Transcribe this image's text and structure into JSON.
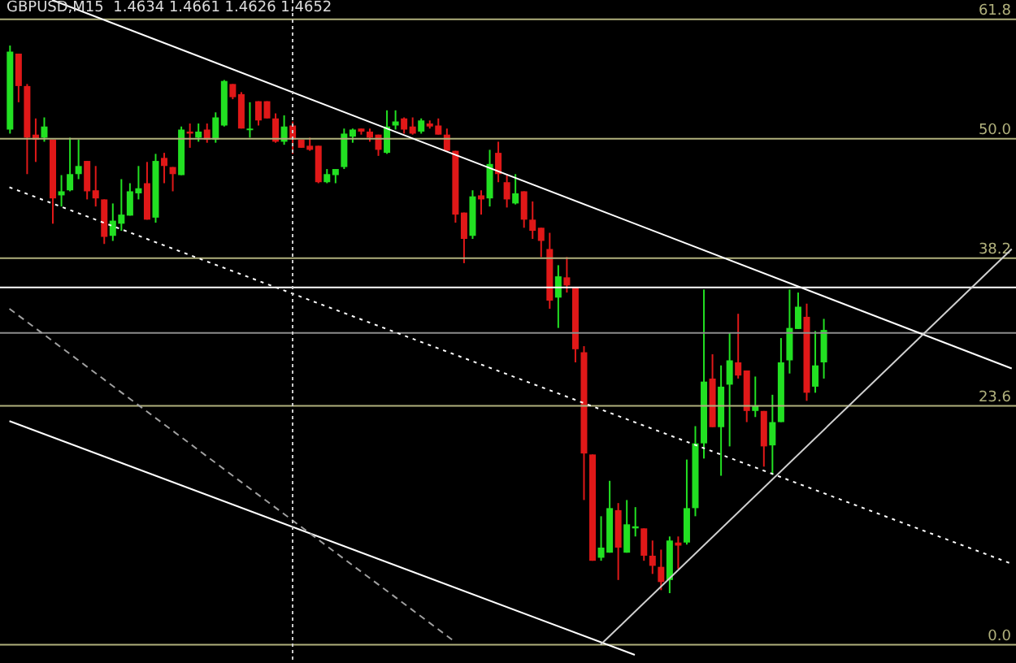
{
  "chart_data": {
    "type": "candlestick",
    "title": "GBPUSD,M15  1.4634 1.4661 1.4626 1.4652",
    "tick_labels": false,
    "grid": false,
    "legend": false,
    "categories": [
      null,
      null,
      null,
      null,
      null,
      null,
      null,
      null,
      null,
      null,
      null,
      null,
      null,
      null,
      null,
      null,
      null,
      null,
      null,
      null,
      null,
      null,
      null,
      null,
      null,
      null,
      null,
      null,
      null,
      null,
      null,
      null,
      null,
      null,
      null,
      null,
      null,
      null,
      null,
      null,
      null,
      null,
      null,
      null,
      null,
      null,
      null,
      null,
      null,
      null,
      null,
      null,
      null,
      null,
      null,
      null,
      null,
      null,
      null,
      null,
      null,
      null,
      null,
      null,
      null,
      null,
      null,
      null,
      null,
      null,
      null,
      null,
      null,
      null,
      null,
      null,
      null,
      null,
      null,
      null,
      null,
      null,
      null,
      null,
      null,
      null,
      null,
      null,
      null,
      null,
      null,
      null,
      null,
      null,
      null,
      null,
      null,
      null,
      null,
      null,
      null,
      null,
      null,
      null,
      null,
      null,
      null,
      null,
      null,
      null,
      null,
      null,
      null,
      null,
      null,
      null,
      null,
      null
    ],
    "colors": [
      "#22e022",
      "#e01818",
      "#e01818",
      "#e01818",
      "#22e022",
      "#e01818",
      "#22e022",
      "#22e022",
      "#22e022",
      "#e01818",
      "#e01818",
      "#e01818",
      "#22e022",
      "#22e022",
      "#22e022",
      "#22e022",
      "#e01818",
      "#22e022",
      "#e01818",
      "#e01818",
      "#22e022",
      "#e01818",
      "#22e022",
      "#e01818",
      "#22e022",
      "#22e022",
      "#e01818",
      "#e01818",
      "#22e022",
      "#e01818",
      "#e01818",
      "#e01818",
      "#22e022",
      "#e01818",
      "#e01818",
      "#e01818",
      "#e01818",
      "#22e022",
      "#22e022",
      "#22e022",
      "#22e022",
      "#e01818",
      "#e01818",
      "#e01818",
      "#22e022",
      "#22e022",
      "#e01818",
      "#e01818",
      "#22e022",
      "#e01818",
      "#e01818",
      "#e01818",
      "#e01818",
      "#e01818",
      "#22e022",
      "#e01818",
      "#22e022",
      "#e01818",
      "#e01818",
      "#22e022",
      "#e01818",
      "#e01818",
      "#e01818",
      "#e01818",
      "#22e022",
      "#e01818",
      "#e01818",
      "#e01818",
      "#e01818",
      "#22e022",
      "#22e022",
      "#e01818",
      "#22e022",
      "#22e022",
      "#e01818",
      "#e01818",
      "#e01818",
      "#22e022",
      "#e01818",
      "#22e022",
      "#22e022",
      "#22e022",
      "#e01818",
      "#22e022",
      "#22e022",
      "#e01818",
      "#e01818",
      "#22e022",
      "#e01818",
      "#22e022",
      "#22e022",
      "#22e022",
      "#22e022",
      "#e01818",
      "#22e022",
      "#22e022",
      null,
      null,
      null,
      null,
      null,
      null,
      null,
      null,
      null,
      null,
      null,
      null,
      null,
      null,
      null,
      null,
      null,
      null,
      null,
      null,
      null,
      null
    ],
    "ylim": [
      -1.8,
      63.7
    ],
    "ohlc": [
      [
        50.9,
        59.2,
        50.5,
        58.6
      ],
      [
        58.4,
        58.4,
        53.6,
        55.2
      ],
      [
        55.2,
        55.4,
        46.5,
        50.1
      ],
      [
        50.4,
        52.0,
        47.7,
        49.9
      ],
      [
        50.1,
        52.1,
        49.7,
        51.2
      ],
      [
        49.9,
        49.9,
        41.6,
        44.1
      ],
      [
        44.4,
        46.4,
        43.3,
        44.8
      ],
      [
        44.9,
        50.1,
        44.8,
        46.5
      ],
      [
        46.5,
        49.9,
        46.0,
        47.3
      ],
      [
        47.8,
        47.8,
        44.0,
        44.8
      ],
      [
        44.9,
        47.3,
        43.3,
        44.1
      ],
      [
        44.0,
        44.0,
        39.6,
        40.3
      ],
      [
        40.4,
        43.6,
        39.9,
        41.9
      ],
      [
        41.6,
        46.0,
        40.9,
        42.5
      ],
      [
        42.4,
        45.6,
        42.4,
        44.8
      ],
      [
        44.6,
        47.3,
        44.0,
        45.1
      ],
      [
        45.6,
        47.7,
        42.0,
        42.0
      ],
      [
        42.2,
        48.5,
        41.7,
        47.8
      ],
      [
        48.1,
        48.6,
        45.6,
        47.3
      ],
      [
        47.2,
        47.2,
        44.8,
        46.5
      ],
      [
        46.4,
        51.2,
        46.4,
        50.9
      ],
      [
        50.7,
        51.5,
        49.1,
        50.5
      ],
      [
        50.1,
        51.5,
        49.7,
        50.7
      ],
      [
        50.9,
        51.5,
        49.6,
        49.9
      ],
      [
        49.9,
        52.6,
        49.6,
        52.1
      ],
      [
        51.3,
        55.8,
        51.2,
        55.7
      ],
      [
        55.4,
        55.4,
        53.9,
        54.1
      ],
      [
        54.4,
        54.6,
        51.0,
        51.0
      ],
      [
        50.9,
        53.6,
        50.1,
        51.0
      ],
      [
        53.7,
        53.7,
        51.3,
        51.8
      ],
      [
        53.7,
        53.7,
        52.0,
        52.0
      ],
      [
        52.0,
        52.5,
        49.6,
        49.7
      ],
      [
        49.7,
        52.3,
        49.4,
        51.2
      ],
      [
        51.3,
        51.7,
        48.5,
        49.9
      ],
      [
        49.9,
        49.9,
        49.1,
        49.1
      ],
      [
        49.3,
        50.1,
        48.8,
        48.9
      ],
      [
        49.3,
        49.3,
        45.6,
        45.7
      ],
      [
        45.7,
        47.0,
        45.6,
        46.5
      ],
      [
        46.4,
        47.0,
        45.6,
        47.0
      ],
      [
        47.2,
        51.0,
        47.0,
        50.5
      ],
      [
        50.2,
        51.0,
        49.6,
        50.9
      ],
      [
        51.0,
        51.0,
        50.4,
        50.7
      ],
      [
        50.7,
        51.0,
        49.7,
        50.1
      ],
      [
        50.4,
        50.4,
        48.3,
        48.9
      ],
      [
        48.6,
        52.8,
        48.5,
        51.2
      ],
      [
        51.3,
        52.8,
        50.9,
        51.7
      ],
      [
        52.0,
        52.1,
        50.5,
        50.9
      ],
      [
        51.2,
        52.1,
        50.4,
        50.5
      ],
      [
        50.7,
        52.0,
        50.5,
        51.8
      ],
      [
        51.5,
        51.8,
        51.0,
        51.2
      ],
      [
        51.3,
        52.0,
        50.4,
        50.4
      ],
      [
        50.4,
        51.0,
        48.8,
        48.8
      ],
      [
        48.8,
        48.8,
        41.7,
        42.5
      ],
      [
        42.7,
        42.7,
        37.7,
        40.1
      ],
      [
        40.4,
        44.9,
        40.1,
        44.3
      ],
      [
        44.4,
        44.9,
        42.5,
        44.0
      ],
      [
        44.1,
        48.9,
        43.3,
        47.5
      ],
      [
        48.6,
        49.7,
        45.7,
        46.5
      ],
      [
        45.7,
        46.5,
        43.2,
        44.0
      ],
      [
        43.6,
        46.5,
        43.5,
        44.6
      ],
      [
        44.8,
        44.8,
        41.2,
        42.0
      ],
      [
        42.0,
        43.8,
        40.1,
        40.9
      ],
      [
        41.2,
        41.2,
        38.3,
        39.9
      ],
      [
        39.1,
        40.7,
        33.2,
        34.0
      ],
      [
        34.3,
        37.5,
        31.3,
        36.4
      ],
      [
        36.3,
        38.3,
        34.8,
        35.5
      ],
      [
        35.3,
        35.3,
        27.9,
        29.2
      ],
      [
        28.9,
        29.5,
        14.3,
        18.9
      ],
      [
        18.8,
        18.8,
        8.3,
        8.3
      ],
      [
        8.6,
        12.7,
        8.3,
        9.6
      ],
      [
        9.1,
        16.2,
        9.1,
        13.5
      ],
      [
        13.3,
        14.0,
        6.4,
        9.6
      ],
      [
        9.1,
        14.3,
        9.1,
        11.9
      ],
      [
        11.5,
        13.6,
        10.7,
        11.7
      ],
      [
        11.5,
        11.5,
        8.3,
        8.8
      ],
      [
        8.8,
        10.3,
        7.0,
        7.8
      ],
      [
        7.7,
        9.4,
        5.4,
        6.2
      ],
      [
        6.4,
        10.7,
        5.1,
        10.3
      ],
      [
        10.1,
        10.7,
        7.5,
        9.8
      ],
      [
        10.1,
        18.3,
        9.9,
        13.5
      ],
      [
        13.5,
        21.6,
        12.7,
        19.9
      ],
      [
        19.9,
        35.1,
        18.4,
        26.0
      ],
      [
        26.3,
        28.7,
        21.5,
        21.5
      ],
      [
        21.5,
        27.6,
        16.7,
        25.5
      ],
      [
        25.7,
        30.8,
        19.6,
        28.1
      ],
      [
        27.9,
        32.7,
        26.3,
        26.6
      ],
      [
        27.1,
        27.1,
        22.0,
        23.1
      ],
      [
        23.1,
        26.5,
        22.5,
        23.6
      ],
      [
        23.1,
        23.1,
        17.6,
        19.6
      ],
      [
        19.7,
        24.7,
        16.8,
        22.0
      ],
      [
        22.0,
        30.3,
        22.0,
        27.9
      ],
      [
        28.1,
        35.1,
        26.8,
        31.3
      ],
      [
        31.2,
        34.8,
        31.2,
        33.4
      ],
      [
        32.4,
        33.7,
        24.1,
        24.9
      ],
      [
        25.5,
        31.0,
        24.9,
        27.6
      ],
      [
        27.9,
        32.2,
        26.3,
        31.1
      ],
      null,
      null,
      null,
      null,
      null,
      null,
      null,
      null,
      null,
      null,
      null,
      null,
      null,
      null,
      null,
      null,
      null,
      null,
      null,
      null,
      null,
      null
    ],
    "series": [
      {
        "type": "line",
        "color": "#ffffff",
        "line_style": "solid",
        "values": [
          null,
          null,
          null,
          null,
          null,
          63.7,
          null,
          null,
          null,
          null,
          null,
          null,
          null,
          null,
          null,
          null,
          null,
          null,
          null,
          null,
          null,
          null,
          null,
          null,
          null,
          null,
          null,
          null,
          null,
          null,
          null,
          null,
          null,
          null,
          null,
          null,
          null,
          null,
          null,
          null,
          null,
          null,
          null,
          null,
          null,
          null,
          null,
          null,
          null,
          null,
          null,
          null,
          null,
          null,
          null,
          null,
          null,
          null,
          null,
          null,
          null,
          null,
          null,
          null,
          null,
          null,
          null,
          null,
          null,
          null,
          null,
          null,
          null,
          null,
          null,
          null,
          null,
          null,
          null,
          null,
          null,
          null,
          null,
          null,
          null,
          null,
          null,
          null,
          null,
          null,
          null,
          null,
          null,
          null,
          null,
          null,
          null,
          null,
          null,
          null,
          null,
          null,
          null,
          null,
          null,
          null,
          null,
          null,
          null,
          null,
          null,
          null,
          null,
          null,
          null,
          null,
          null,
          27.3
        ]
      },
      {
        "type": "line",
        "color": "#ffffff",
        "line_style": "dotted",
        "values": [
          45.2,
          null,
          null,
          null,
          null,
          null,
          null,
          null,
          null,
          null,
          null,
          null,
          null,
          null,
          null,
          null,
          null,
          null,
          null,
          null,
          null,
          null,
          null,
          null,
          null,
          null,
          null,
          null,
          null,
          null,
          null,
          null,
          null,
          null,
          null,
          null,
          null,
          null,
          null,
          null,
          null,
          null,
          null,
          null,
          null,
          null,
          null,
          null,
          null,
          null,
          null,
          null,
          null,
          null,
          null,
          null,
          null,
          null,
          null,
          null,
          null,
          null,
          null,
          null,
          null,
          null,
          null,
          null,
          null,
          null,
          null,
          null,
          null,
          null,
          null,
          null,
          null,
          null,
          null,
          null,
          null,
          null,
          null,
          null,
          null,
          null,
          null,
          null,
          null,
          null,
          null,
          null,
          null,
          null,
          null,
          null,
          null,
          null,
          null,
          null,
          null,
          null,
          null,
          null,
          null,
          null,
          null,
          null,
          null,
          null,
          null,
          null,
          null,
          null,
          null,
          null,
          null,
          8.0
        ]
      },
      {
        "type": "line",
        "color": "#ffffff",
        "line_style": "solid",
        "values": [
          22.1,
          null,
          null,
          null,
          null,
          null,
          null,
          null,
          null,
          null,
          null,
          null,
          null,
          null,
          null,
          null,
          null,
          null,
          null,
          null,
          null,
          null,
          null,
          null,
          null,
          null,
          null,
          null,
          null,
          null,
          null,
          null,
          null,
          null,
          null,
          null,
          null,
          null,
          null,
          null,
          null,
          null,
          null,
          null,
          null,
          null,
          null,
          null,
          null,
          null,
          null,
          null,
          null,
          null,
          null,
          null,
          null,
          null,
          null,
          null,
          null,
          null,
          null,
          null,
          null,
          null,
          null,
          null,
          null,
          null,
          null,
          null,
          null,
          -1.0,
          null,
          null,
          null,
          null,
          null,
          null,
          null,
          null,
          null,
          null,
          null,
          null,
          null,
          null,
          null,
          null,
          null,
          null,
          null,
          null,
          null,
          null,
          null,
          null,
          null,
          null,
          null,
          null,
          null,
          null,
          null,
          null,
          null,
          null,
          null,
          null,
          null,
          null,
          null,
          null,
          null,
          null,
          null,
          null
        ]
      },
      {
        "type": "line",
        "color": "#a0a0a0",
        "line_style": "dashed",
        "values": [
          33.2,
          null,
          null,
          null,
          null,
          null,
          null,
          null,
          null,
          null,
          null,
          null,
          null,
          null,
          null,
          null,
          null,
          null,
          null,
          null,
          null,
          null,
          null,
          null,
          null,
          null,
          null,
          null,
          null,
          null,
          null,
          null,
          null,
          null,
          null,
          null,
          null,
          null,
          null,
          null,
          null,
          null,
          null,
          null,
          null,
          null,
          null,
          null,
          null,
          null,
          null,
          null,
          0.3,
          null,
          null,
          null,
          null,
          null,
          null,
          null,
          null,
          null,
          null,
          null,
          null,
          null,
          null,
          null,
          null,
          null,
          null,
          null,
          null,
          null,
          null,
          null,
          null,
          null,
          null,
          null,
          null,
          null,
          null,
          null,
          null,
          null,
          null,
          null,
          null,
          null,
          null,
          null,
          null,
          null,
          null,
          null,
          null,
          null,
          null,
          null,
          null,
          null,
          null,
          null,
          null,
          null,
          null,
          null,
          null,
          null,
          null,
          null,
          null,
          null,
          null,
          null,
          null,
          null
        ]
      },
      {
        "type": "line",
        "color": "#d0d0d0",
        "line_style": "solid",
        "values": [
          null,
          null,
          null,
          null,
          null,
          null,
          null,
          null,
          null,
          null,
          null,
          null,
          null,
          null,
          null,
          null,
          null,
          null,
          null,
          null,
          null,
          null,
          null,
          null,
          null,
          null,
          null,
          null,
          null,
          null,
          null,
          null,
          null,
          null,
          null,
          null,
          null,
          null,
          null,
          null,
          null,
          null,
          null,
          null,
          null,
          null,
          null,
          null,
          null,
          null,
          null,
          null,
          null,
          null,
          null,
          null,
          null,
          null,
          null,
          null,
          null,
          null,
          null,
          null,
          null,
          null,
          null,
          null,
          null,
          0,
          null,
          null,
          null,
          null,
          null,
          null,
          null,
          null,
          null,
          null,
          null,
          null,
          null,
          null,
          null,
          null,
          null,
          null,
          null,
          null,
          null,
          null,
          null,
          null,
          null,
          null,
          null,
          null,
          null,
          null,
          null,
          null,
          null,
          null,
          null,
          null,
          null,
          null,
          null,
          null,
          null,
          null,
          null,
          null,
          null,
          null,
          null,
          39.1
        ]
      }
    ],
    "ref_lines": [
      {
        "axis": "y",
        "value": 61.8,
        "label": "61.8",
        "color": "#b0b07c"
      },
      {
        "axis": "y",
        "value": 50.0,
        "label": "50.0",
        "color": "#b0b07c"
      },
      {
        "axis": "y",
        "value": 38.2,
        "label": "38.2",
        "color": "#b0b07c"
      },
      {
        "axis": "y",
        "value": 23.6,
        "label": "23.6",
        "color": "#b0b07c"
      },
      {
        "axis": "y",
        "value": 0.0,
        "label": "0.0",
        "color": "#b0b07c"
      },
      {
        "axis": "y",
        "value": 35.3,
        "label": null,
        "color": "#ffffff"
      },
      {
        "axis": "y",
        "value": 30.8,
        "label": null,
        "color": "#8c8c8c"
      }
    ]
  }
}
